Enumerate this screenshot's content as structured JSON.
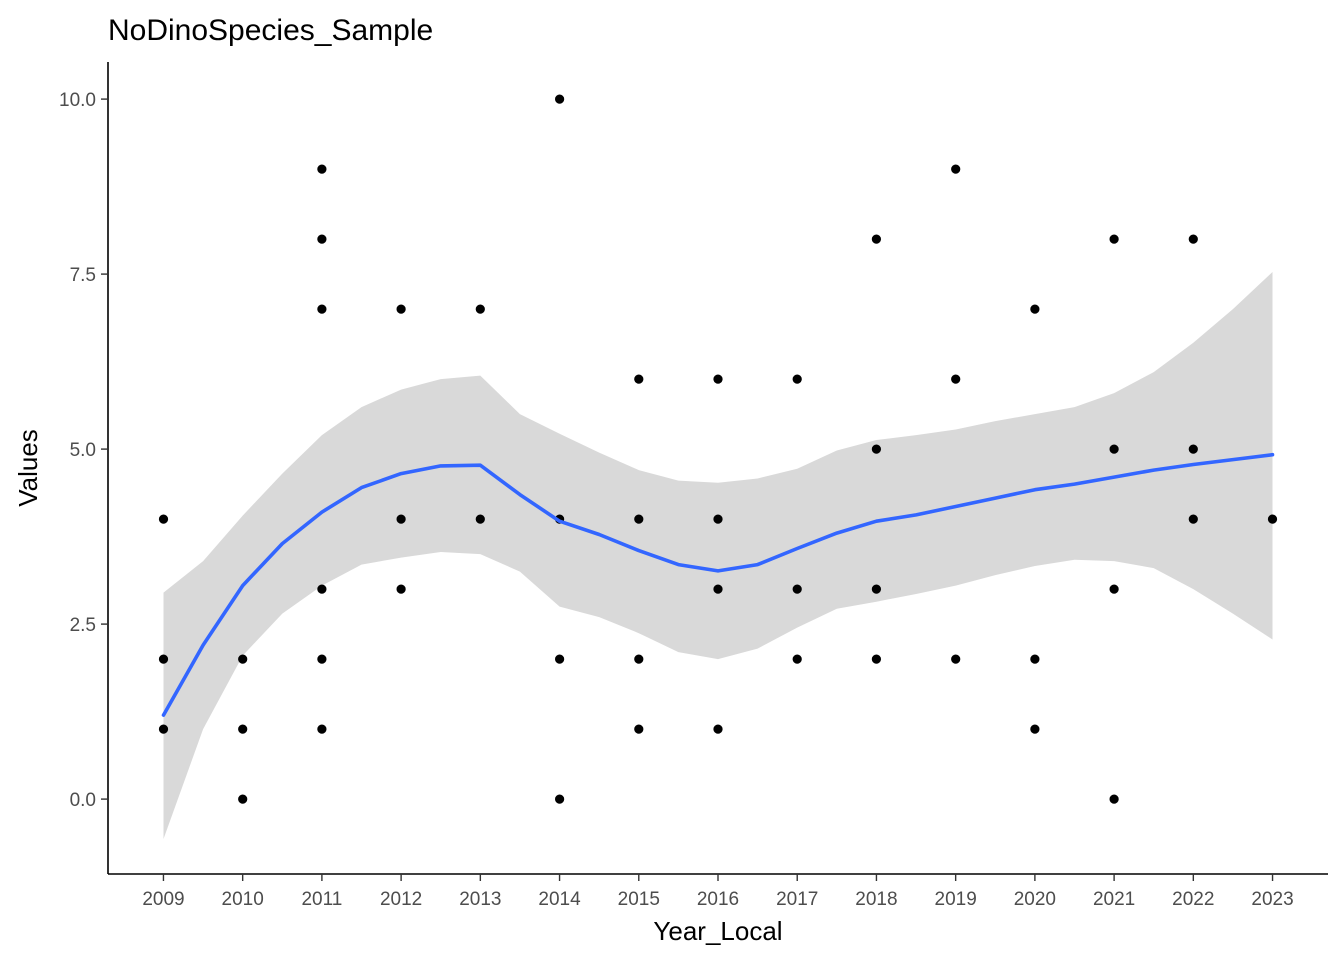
{
  "chart_data": {
    "type": "scatter",
    "title": "NoDinoSpecies_Sample",
    "xlabel": "Year_Local",
    "ylabel": "Values",
    "xlim": [
      2008.3,
      2023.7
    ],
    "ylim": [
      -1.07,
      10.53
    ],
    "x_ticks": [
      2009,
      2010,
      2011,
      2012,
      2013,
      2014,
      2015,
      2016,
      2017,
      2018,
      2019,
      2020,
      2021,
      2022,
      2023
    ],
    "x_tick_labels": [
      "2009",
      "2010",
      "2011",
      "2012",
      "2013",
      "2014",
      "2015",
      "2016",
      "2017",
      "2018",
      "2019",
      "2020",
      "2021",
      "2022",
      "2023"
    ],
    "y_ticks": [
      0,
      2.5,
      5,
      7.5,
      10
    ],
    "y_tick_labels": [
      "0.0",
      "2.5",
      "5.0",
      "7.5",
      "10.0"
    ],
    "grid": false,
    "points": [
      {
        "x": 2009,
        "y": 4
      },
      {
        "x": 2009,
        "y": 2
      },
      {
        "x": 2009,
        "y": 1
      },
      {
        "x": 2010,
        "y": 2
      },
      {
        "x": 2010,
        "y": 1
      },
      {
        "x": 2010,
        "y": 0
      },
      {
        "x": 2011,
        "y": 9
      },
      {
        "x": 2011,
        "y": 8
      },
      {
        "x": 2011,
        "y": 7
      },
      {
        "x": 2011,
        "y": 3
      },
      {
        "x": 2011,
        "y": 2
      },
      {
        "x": 2011,
        "y": 1
      },
      {
        "x": 2012,
        "y": 7
      },
      {
        "x": 2012,
        "y": 4
      },
      {
        "x": 2012,
        "y": 3
      },
      {
        "x": 2013,
        "y": 7
      },
      {
        "x": 2013,
        "y": 4
      },
      {
        "x": 2014,
        "y": 10
      },
      {
        "x": 2014,
        "y": 4
      },
      {
        "x": 2014,
        "y": 2
      },
      {
        "x": 2014,
        "y": 0
      },
      {
        "x": 2015,
        "y": 6
      },
      {
        "x": 2015,
        "y": 4
      },
      {
        "x": 2015,
        "y": 2
      },
      {
        "x": 2015,
        "y": 1
      },
      {
        "x": 2016,
        "y": 6
      },
      {
        "x": 2016,
        "y": 4
      },
      {
        "x": 2016,
        "y": 3
      },
      {
        "x": 2016,
        "y": 1
      },
      {
        "x": 2017,
        "y": 6
      },
      {
        "x": 2017,
        "y": 3
      },
      {
        "x": 2017,
        "y": 2
      },
      {
        "x": 2018,
        "y": 8
      },
      {
        "x": 2018,
        "y": 5
      },
      {
        "x": 2018,
        "y": 3
      },
      {
        "x": 2018,
        "y": 2
      },
      {
        "x": 2019,
        "y": 9
      },
      {
        "x": 2019,
        "y": 6
      },
      {
        "x": 2019,
        "y": 2
      },
      {
        "x": 2020,
        "y": 7
      },
      {
        "x": 2020,
        "y": 2
      },
      {
        "x": 2020,
        "y": 1
      },
      {
        "x": 2021,
        "y": 8
      },
      {
        "x": 2021,
        "y": 5
      },
      {
        "x": 2021,
        "y": 3
      },
      {
        "x": 2021,
        "y": 0
      },
      {
        "x": 2022,
        "y": 8
      },
      {
        "x": 2022,
        "y": 5
      },
      {
        "x": 2022,
        "y": 4
      },
      {
        "x": 2023,
        "y": 4
      }
    ],
    "smooth": {
      "x": [
        2009,
        2009.5,
        2010,
        2010.5,
        2011,
        2011.5,
        2012,
        2012.5,
        2013,
        2013.5,
        2014,
        2014.5,
        2015,
        2015.5,
        2016,
        2016.5,
        2017,
        2017.5,
        2018,
        2018.5,
        2019,
        2019.5,
        2020,
        2020.5,
        2021,
        2021.5,
        2022,
        2022.5,
        2023
      ],
      "y": [
        1.2,
        2.2,
        3.05,
        3.65,
        4.1,
        4.45,
        4.65,
        4.76,
        4.77,
        4.35,
        3.97,
        3.78,
        3.55,
        3.35,
        3.26,
        3.35,
        3.58,
        3.8,
        3.97,
        4.06,
        4.18,
        4.3,
        4.42,
        4.5,
        4.6,
        4.7,
        4.78,
        4.85,
        4.92
      ],
      "lower": [
        -0.57,
        1.0,
        2.05,
        2.65,
        3.05,
        3.35,
        3.45,
        3.53,
        3.5,
        3.25,
        2.75,
        2.6,
        2.37,
        2.1,
        2.0,
        2.15,
        2.45,
        2.72,
        2.82,
        2.93,
        3.05,
        3.2,
        3.33,
        3.42,
        3.4,
        3.3,
        3.0,
        2.65,
        2.28
      ],
      "upper": [
        2.95,
        3.4,
        4.05,
        4.65,
        5.2,
        5.6,
        5.85,
        6.0,
        6.05,
        5.5,
        5.22,
        4.95,
        4.7,
        4.55,
        4.52,
        4.58,
        4.72,
        4.98,
        5.13,
        5.2,
        5.28,
        5.4,
        5.5,
        5.6,
        5.8,
        6.1,
        6.52,
        7.0,
        7.53
      ]
    },
    "colors": {
      "points": "#000000",
      "line": "#3366ff",
      "band": "#d9d9d9",
      "tick_text": "#4d4d4d"
    }
  }
}
